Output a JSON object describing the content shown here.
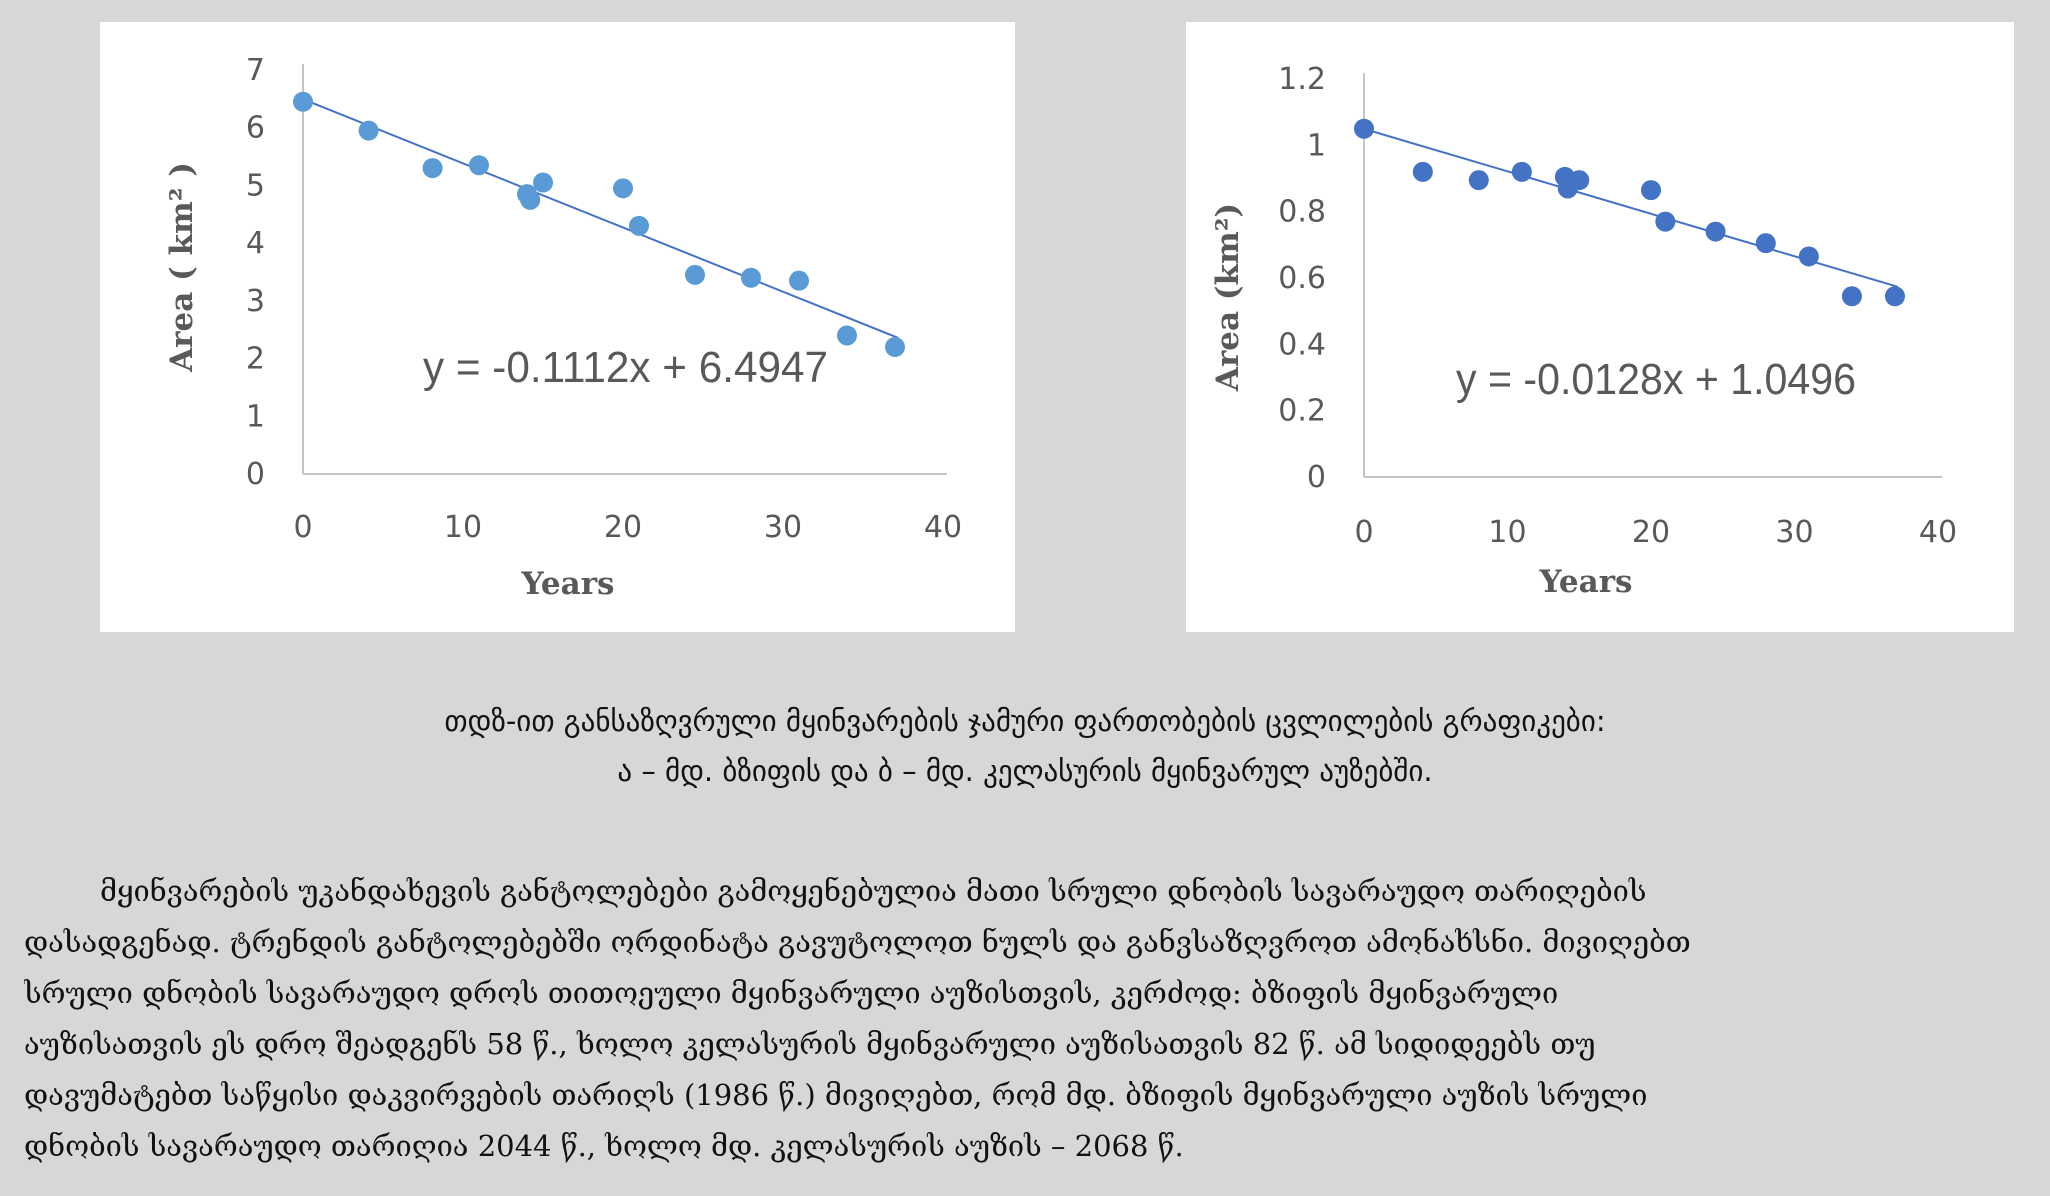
{
  "charts": [
    {
      "id": "a",
      "equation": "y = -0.1112x + 6.4947",
      "xlabel": "Years",
      "ylabel": "Area ( km² )",
      "x_ticks": [
        "0",
        "10",
        "20",
        "30",
        "40"
      ],
      "y_ticks": [
        "0",
        "1",
        "2",
        "3",
        "4",
        "5",
        "6",
        "7"
      ],
      "marker_color": "#5b9bd5",
      "line_color": "#4472c4"
    },
    {
      "id": "b",
      "equation": "y = -0.0128x + 1.0496",
      "xlabel": "Years",
      "ylabel": "Area (km²)",
      "x_ticks": [
        "0",
        "10",
        "20",
        "30",
        "40"
      ],
      "y_ticks": [
        "0",
        "0.2",
        "0.4",
        "0.6",
        "0.8",
        "1",
        "1.2"
      ],
      "marker_color": "#4472c4",
      "line_color": "#4472c4"
    }
  ],
  "chart_data": [
    {
      "type": "scatter",
      "xlabel": "Years",
      "ylabel": "Area ( km² )",
      "xlim": [
        0,
        40
      ],
      "ylim": [
        0,
        7
      ],
      "grid": false,
      "trendline": {
        "slope": -0.1112,
        "intercept": 6.4947,
        "equation": "y = -0.1112x + 6.4947"
      },
      "points": [
        {
          "x": 0,
          "y": 6.45
        },
        {
          "x": 4.1,
          "y": 5.95
        },
        {
          "x": 8.1,
          "y": 5.3
        },
        {
          "x": 11,
          "y": 5.35
        },
        {
          "x": 14,
          "y": 4.85
        },
        {
          "x": 14.2,
          "y": 4.75
        },
        {
          "x": 15,
          "y": 5.05
        },
        {
          "x": 20,
          "y": 4.95
        },
        {
          "x": 21,
          "y": 4.3
        },
        {
          "x": 24.5,
          "y": 3.45
        },
        {
          "x": 28,
          "y": 3.4
        },
        {
          "x": 31,
          "y": 3.35
        },
        {
          "x": 34,
          "y": 2.4
        },
        {
          "x": 37,
          "y": 2.2
        }
      ]
    },
    {
      "type": "scatter",
      "xlabel": "Years",
      "ylabel": "Area (km²)",
      "xlim": [
        0,
        40
      ],
      "ylim": [
        0,
        1.2
      ],
      "grid": false,
      "trendline": {
        "slope": -0.0128,
        "intercept": 1.0496,
        "equation": "y = -0.0128x + 1.0496"
      },
      "points": [
        {
          "x": 0,
          "y": 1.05
        },
        {
          "x": 4.1,
          "y": 0.92
        },
        {
          "x": 8,
          "y": 0.895
        },
        {
          "x": 11,
          "y": 0.92
        },
        {
          "x": 14,
          "y": 0.905
        },
        {
          "x": 14.2,
          "y": 0.87
        },
        {
          "x": 15,
          "y": 0.895
        },
        {
          "x": 20,
          "y": 0.865
        },
        {
          "x": 21,
          "y": 0.77
        },
        {
          "x": 24.5,
          "y": 0.74
        },
        {
          "x": 28,
          "y": 0.705
        },
        {
          "x": 31,
          "y": 0.665
        },
        {
          "x": 34,
          "y": 0.545
        },
        {
          "x": 37,
          "y": 0.545
        }
      ]
    }
  ],
  "caption": {
    "line1": "თდზ-ით განსაზღვრული მყინვარების ჯამური ფართობების ცვლილების გრაფიკები:",
    "line2": "ა – მდ. ბზიფის და ბ – მდ. კელასურის მყინვარულ აუზებში."
  },
  "paragraph": {
    "lines": [
      "მყინვარების უკანდახევის განტოლებები გამოყენებულია მათი სრული დნობის სავარაუდო თარიღების",
      "დასადგენად. ტრენდის განტოლებებში ორდინატა გავუტოლოთ ნულს და განვსაზღვროთ ამონახსნი. მივიღებთ",
      "სრული დნობის სავარაუდო  დროს თითოეული მყინვარული აუზისთვის, კერძოდ: ბზიფის მყინვარული",
      "აუზისათვის ეს დრო შეადგენს 58 წ., ხოლო კელასურის მყინვარული აუზისათვის 82 წ. ამ სიდიდეებს თუ",
      "დავუმატებთ საწყისი დაკვირვების თარიღს (1986 წ.) მივიღებთ, რომ მდ. ბზიფის მყინვარული აუზის სრული",
      "დნობის სავარაუდო თარიღია 2044 წ., ხოლო მდ. კელასურის აუზის – 2068 წ."
    ]
  }
}
